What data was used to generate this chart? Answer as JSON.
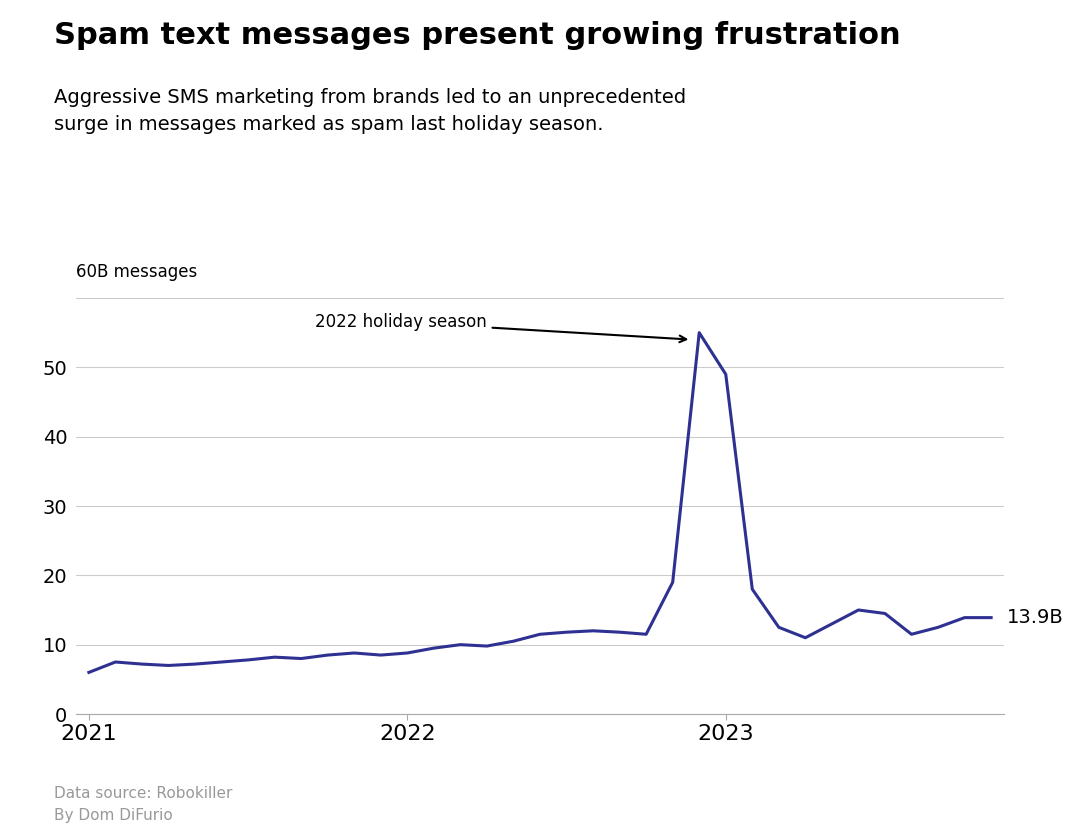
{
  "title": "Spam text messages present growing frustration",
  "subtitle": "Aggressive SMS marketing from brands led to an unprecedented\nsurge in messages marked as spam last holiday season.",
  "ylabel": "60B messages",
  "line_color": "#2e3191",
  "line_width": 2.2,
  "background_color": "#ffffff",
  "yticks": [
    0,
    10,
    20,
    30,
    40,
    50
  ],
  "ylim": [
    0,
    63
  ],
  "annotation_text": "2022 holiday season",
  "end_label": "13.9B",
  "source_text": "Data source: Robokiller\nBy Dom DiFurio",
  "values": [
    6.0,
    7.5,
    7.2,
    7.0,
    7.2,
    7.5,
    7.8,
    8.2,
    8.0,
    8.5,
    8.8,
    8.5,
    8.8,
    9.5,
    10.0,
    9.8,
    10.5,
    11.5,
    11.8,
    12.0,
    11.8,
    11.5,
    19.0,
    55.0,
    49.0,
    18.0,
    12.5,
    11.0,
    13.0,
    15.0,
    14.5,
    11.5,
    12.5,
    13.9,
    13.9
  ],
  "annotation_peak_idx": 23,
  "xtick_positions": [
    0,
    12,
    24
  ],
  "xtick_labels": [
    "2021",
    "2022",
    "2023"
  ]
}
